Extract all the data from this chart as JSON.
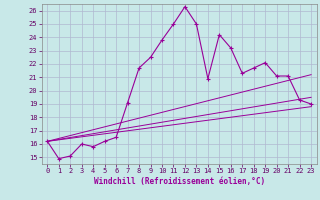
{
  "bg_color": "#c8e8e8",
  "grid_color": "#b0b8d0",
  "line_color": "#990099",
  "xlim": [
    -0.5,
    23.5
  ],
  "ylim": [
    14.5,
    26.5
  ],
  "yticks": [
    15,
    16,
    17,
    18,
    19,
    20,
    21,
    22,
    23,
    24,
    25,
    26
  ],
  "xticks": [
    0,
    1,
    2,
    3,
    4,
    5,
    6,
    7,
    8,
    9,
    10,
    11,
    12,
    13,
    14,
    15,
    16,
    17,
    18,
    19,
    20,
    21,
    22,
    23
  ],
  "series1_x": [
    0,
    1,
    2,
    3,
    4,
    5,
    6,
    7,
    8,
    9,
    10,
    11,
    12,
    13,
    14,
    15,
    16,
    17,
    18,
    19,
    20,
    21,
    22,
    23
  ],
  "series1_y": [
    16.2,
    14.9,
    15.1,
    16.0,
    15.8,
    16.2,
    16.5,
    19.1,
    21.7,
    22.5,
    23.8,
    25.0,
    26.3,
    25.0,
    20.9,
    24.2,
    23.2,
    21.3,
    21.7,
    22.1,
    21.1,
    21.1,
    19.3,
    19.0
  ],
  "series2_x": [
    0,
    23
  ],
  "series2_y": [
    16.2,
    21.2
  ],
  "series3_x": [
    0,
    23
  ],
  "series3_y": [
    16.2,
    19.5
  ],
  "series4_x": [
    0,
    23
  ],
  "series4_y": [
    16.2,
    18.8
  ],
  "xlabel": "Windchill (Refroidissement éolien,°C)"
}
